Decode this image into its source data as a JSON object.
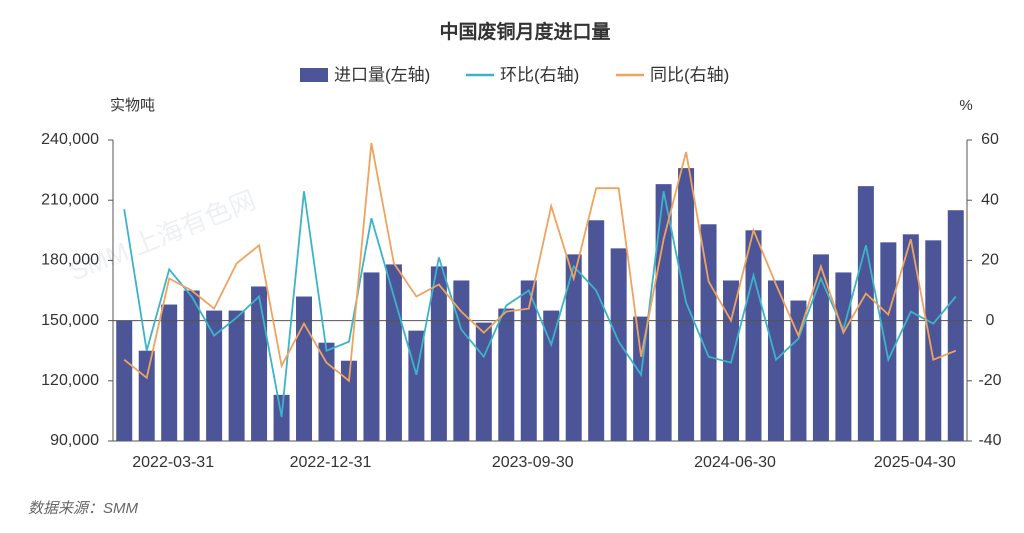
{
  "chart_data": {
    "type": "bar_line",
    "title": "中国废铜月度进口量",
    "y_axis_label": "实物吨",
    "y2_axis_label": "%",
    "source": "数据来源：SMM",
    "watermark": "SMM 上海有色网",
    "categories": [
      null,
      null,
      "2022-03-31",
      null,
      null,
      null,
      null,
      null,
      null,
      "2022-12-31",
      null,
      null,
      null,
      null,
      null,
      null,
      null,
      null,
      "2023-09-30",
      null,
      null,
      null,
      null,
      null,
      null,
      null,
      null,
      "2024-06-30",
      null,
      null,
      null,
      null,
      null,
      null,
      null,
      "2025-04-30",
      null,
      null
    ],
    "series": [
      {
        "name": "进口量(左轴)",
        "type": "bar",
        "color": "#4b5597",
        "values": [
          150000,
          135000,
          158000,
          165000,
          155000,
          155000,
          167000,
          113000,
          162000,
          139000,
          130000,
          174000,
          178000,
          145000,
          177000,
          170000,
          149000,
          156000,
          170000,
          155000,
          183000,
          200000,
          186000,
          152000,
          218000,
          226000,
          198000,
          170000,
          195000,
          170000,
          160000,
          183000,
          174000,
          217000,
          189000,
          193000,
          190000,
          205000
        ]
      },
      {
        "name": "环比(右轴)",
        "type": "line",
        "axis": "y2",
        "color": "#3cb4c8",
        "values": [
          37,
          -10,
          17,
          8,
          -5,
          1,
          8,
          -32,
          43,
          -10,
          -7,
          34,
          8,
          -18,
          21,
          -3,
          -12,
          5,
          10,
          -8,
          18,
          10,
          -7,
          -18,
          43,
          6,
          -12,
          -14,
          15,
          -13,
          -6,
          14,
          -3,
          25,
          -13,
          3,
          -1,
          8
        ]
      },
      {
        "name": "同比(右轴)",
        "type": "line",
        "axis": "y2",
        "color": "#f0a35e",
        "values": [
          -13,
          -19,
          14,
          10,
          4,
          19,
          25,
          -15,
          -1,
          -14,
          -20,
          59,
          19,
          8,
          12,
          3,
          -4,
          3,
          4,
          38,
          14,
          44,
          44,
          -12,
          27,
          56,
          13,
          0,
          30,
          12,
          -5,
          18,
          -4,
          9,
          2,
          27,
          -13,
          -10
        ]
      }
    ],
    "ylim": [
      90000,
      240000
    ],
    "yticks": [
      {
        "value": 90000,
        "label": "90,000"
      },
      {
        "value": 120000,
        "label": "120,000"
      },
      {
        "value": 150000,
        "label": "150,000"
      },
      {
        "value": 180000,
        "label": "180,000"
      },
      {
        "value": 210000,
        "label": "210,000"
      },
      {
        "value": 240000,
        "label": "240,000"
      }
    ],
    "y2lim": [
      -40,
      60
    ],
    "y2ticks": [
      -40,
      -20,
      0,
      20,
      40,
      60
    ]
  }
}
